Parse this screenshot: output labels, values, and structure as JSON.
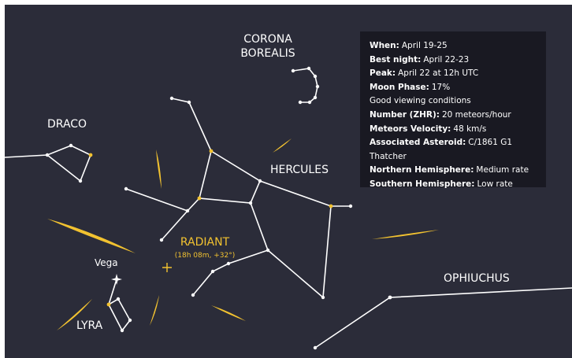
{
  "labels": {
    "corona_borealis": [
      "CORONA",
      "BOREALIS"
    ],
    "draco": "DRACO",
    "hercules": "HERCULES",
    "vega": "Vega",
    "lyra": "LYRA",
    "ophiuchus": "OPHIUCHUS",
    "radiant": "RADIANT",
    "radiant_coords": "(18h 08m, +32°)"
  },
  "info": [
    {
      "label": "When:",
      "value": "April 19-25"
    },
    {
      "label": "Best night:",
      "value": "April 22-23"
    },
    {
      "label": "Peak:",
      "value": "April 22 at 12h UTC"
    },
    {
      "label": "Moon Phase:",
      "value": "17%"
    },
    {
      "value": "Good viewing conditions"
    },
    {
      "label": "Number (ZHR):",
      "value": "20 meteors/hour"
    },
    {
      "label": "Meteors Velocity:",
      "value": "48 km/s"
    },
    {
      "label": "Associated Asteroid:",
      "value": "C/1861 G1 Thatcher"
    },
    {
      "label": "Northern Hemisphere:",
      "value": "Medium rate"
    },
    {
      "label": "Southern Hemisphere:",
      "value": "Low rate"
    }
  ]
}
